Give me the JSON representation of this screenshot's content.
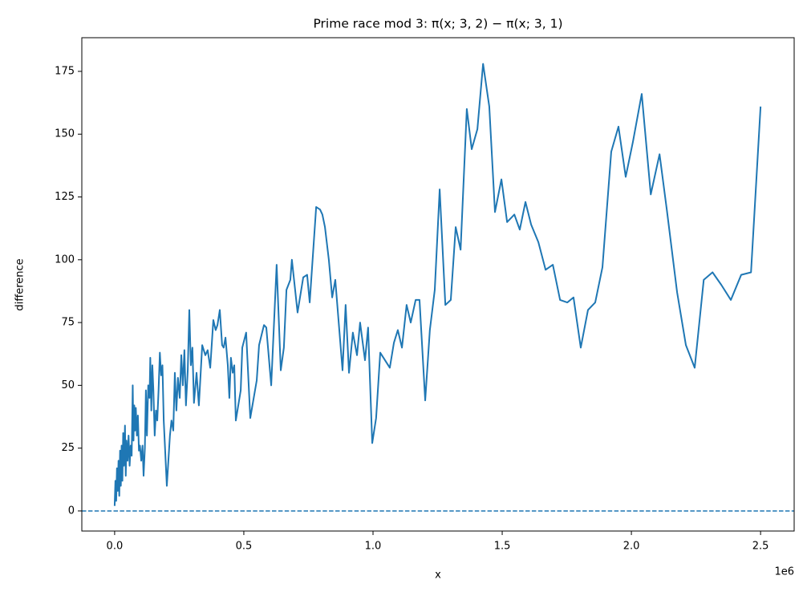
{
  "chart_data": {
    "type": "line",
    "title": "Prime race mod 3: π(x; 3, 2) − π(x; 3, 1)",
    "xlabel": "x",
    "ylabel": "difference",
    "x_offset_label": "1e6",
    "xlim": [
      -127000,
      2630000
    ],
    "ylim": [
      -8,
      188.4
    ],
    "xticks": [
      {
        "value": 0,
        "label": "0.0"
      },
      {
        "value": 500000,
        "label": "0.5"
      },
      {
        "value": 1000000,
        "label": "1.0"
      },
      {
        "value": 1500000,
        "label": "1.5"
      },
      {
        "value": 2000000,
        "label": "2.0"
      },
      {
        "value": 2500000,
        "label": "2.5"
      }
    ],
    "yticks": [
      0,
      25,
      50,
      75,
      100,
      125,
      150,
      175
    ],
    "grid": false,
    "hline": {
      "y": 0,
      "color": "#1f77b4",
      "dashed": true
    },
    "series": [
      {
        "color": "#1f77b4",
        "x": [
          0,
          3000,
          6000,
          9000,
          12000,
          15000,
          18000,
          21000,
          24000,
          27000,
          30000,
          33000,
          36000,
          40000,
          43000,
          46000,
          50000,
          54000,
          58000,
          62000,
          66000,
          70000,
          73000,
          76000,
          79000,
          82000,
          86000,
          90000,
          94000,
          98000,
          103000,
          108000,
          112000,
          117000,
          121000,
          125000,
          130000,
          135000,
          138000,
          142000,
          146000,
          150000,
          155000,
          160000,
          165000,
          170000,
          175000,
          180000,
          185000,
          190000,
          202000,
          214000,
          220000,
          227000,
          233000,
          239000,
          245000,
          252000,
          258000,
          264000,
          270000,
          276000,
          283000,
          289000,
          295000,
          301000,
          307000,
          317000,
          326000,
          339000,
          351000,
          360000,
          370000,
          382000,
          391000,
          398000,
          407000,
          416000,
          422000,
          429000,
          438000,
          444000,
          450000,
          457000,
          463000,
          469000,
          488000,
          494000,
          509000,
          525000,
          550000,
          559000,
          578000,
          587000,
          606000,
          627000,
          643000,
          655000,
          665000,
          680000,
          686000,
          708000,
          730000,
          745000,
          755000,
          780000,
          795000,
          804000,
          814000,
          829000,
          842000,
          854000,
          882000,
          894000,
          907000,
          922000,
          938000,
          950000,
          969000,
          981000,
          997000,
          1012000,
          1028000,
          1065000,
          1081000,
          1096000,
          1112000,
          1130000,
          1146000,
          1165000,
          1180000,
          1202000,
          1220000,
          1239000,
          1258000,
          1280000,
          1301000,
          1320000,
          1339000,
          1363000,
          1382000,
          1404000,
          1426000,
          1450000,
          1472000,
          1497000,
          1519000,
          1547000,
          1568000,
          1590000,
          1612000,
          1640000,
          1668000,
          1696000,
          1724000,
          1752000,
          1776000,
          1804000,
          1832000,
          1860000,
          1888000,
          1922000,
          1950000,
          1978000,
          2006000,
          2040000,
          2075000,
          2109000,
          2137000,
          2177000,
          2211000,
          2245000,
          2280000,
          2314000,
          2348000,
          2385000,
          2425000,
          2463000,
          2500000
        ],
        "values": [
          2,
          12,
          4,
          17,
          8,
          20,
          6,
          24,
          10,
          26,
          12,
          31,
          18,
          34,
          14,
          28,
          20,
          30,
          18,
          26,
          22,
          50,
          28,
          42,
          32,
          41,
          30,
          38,
          24,
          26,
          20,
          26,
          14,
          25,
          48,
          30,
          50,
          45,
          61,
          40,
          58,
          48,
          30,
          40,
          36,
          48,
          63,
          54,
          58,
          36,
          10,
          30,
          36,
          32,
          55,
          40,
          53,
          45,
          62,
          50,
          64,
          42,
          56,
          80,
          58,
          65,
          43,
          55,
          42,
          66,
          62,
          64,
          57,
          76,
          72,
          74,
          80,
          66,
          65,
          69,
          58,
          45,
          61,
          55,
          58,
          36,
          48,
          65,
          71,
          37,
          52,
          66,
          74,
          73,
          50,
          98,
          56,
          65,
          88,
          92,
          100,
          79,
          93,
          94,
          83,
          121,
          120,
          118,
          113,
          100,
          85,
          92,
          56,
          82,
          55,
          71,
          62,
          75,
          60,
          73,
          27,
          37,
          63,
          57,
          67,
          72,
          65,
          82,
          75,
          84,
          84,
          44,
          72,
          88,
          128,
          82,
          84,
          113,
          104,
          160,
          144,
          152,
          178,
          161,
          119,
          132,
          115,
          118,
          112,
          123,
          114,
          107,
          96,
          98,
          84,
          83,
          85,
          65,
          80,
          83,
          97,
          143,
          153,
          133,
          147,
          166,
          126,
          142,
          120,
          87,
          66,
          57,
          92,
          95,
          90,
          84,
          94,
          95,
          161
        ]
      }
    ]
  }
}
